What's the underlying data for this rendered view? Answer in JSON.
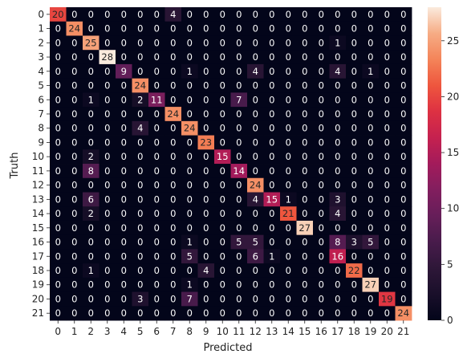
{
  "chart_data": {
    "type": "heatmap",
    "title": "",
    "xlabel": "Predicted",
    "ylabel": "Truth",
    "x_categories": [
      "0",
      "1",
      "2",
      "3",
      "4",
      "5",
      "6",
      "7",
      "8",
      "9",
      "10",
      "11",
      "12",
      "13",
      "14",
      "15",
      "16",
      "17",
      "18",
      "19",
      "20",
      "21"
    ],
    "y_categories": [
      "0",
      "1",
      "2",
      "3",
      "4",
      "5",
      "6",
      "7",
      "8",
      "9",
      "10",
      "11",
      "12",
      "13",
      "14",
      "15",
      "16",
      "17",
      "18",
      "19",
      "20",
      "21"
    ],
    "matrix": [
      [
        20,
        0,
        0,
        0,
        0,
        0,
        0,
        4,
        0,
        0,
        0,
        0,
        0,
        0,
        0,
        0,
        0,
        0,
        0,
        0,
        0,
        0
      ],
      [
        0,
        24,
        0,
        0,
        0,
        0,
        0,
        0,
        0,
        0,
        0,
        0,
        0,
        0,
        0,
        0,
        0,
        0,
        0,
        0,
        0,
        0
      ],
      [
        0,
        0,
        25,
        0,
        0,
        0,
        0,
        0,
        0,
        0,
        0,
        0,
        0,
        0,
        0,
        0,
        0,
        1,
        0,
        0,
        0,
        0
      ],
      [
        0,
        0,
        0,
        28,
        0,
        0,
        0,
        0,
        0,
        0,
        0,
        0,
        0,
        0,
        0,
        0,
        0,
        0,
        0,
        0,
        0,
        0
      ],
      [
        0,
        0,
        0,
        0,
        9,
        0,
        0,
        0,
        1,
        0,
        0,
        0,
        4,
        0,
        0,
        0,
        0,
        4,
        0,
        1,
        0,
        0
      ],
      [
        0,
        0,
        0,
        0,
        0,
        24,
        0,
        0,
        0,
        0,
        0,
        0,
        0,
        0,
        0,
        0,
        0,
        0,
        0,
        0,
        0,
        0
      ],
      [
        0,
        0,
        1,
        0,
        0,
        2,
        11,
        0,
        0,
        0,
        0,
        7,
        0,
        0,
        0,
        0,
        0,
        0,
        0,
        0,
        0,
        0
      ],
      [
        0,
        0,
        0,
        0,
        0,
        0,
        0,
        24,
        0,
        0,
        0,
        0,
        0,
        0,
        0,
        0,
        0,
        0,
        0,
        0,
        0,
        0
      ],
      [
        0,
        0,
        0,
        0,
        0,
        4,
        0,
        0,
        24,
        0,
        0,
        0,
        0,
        0,
        0,
        0,
        0,
        0,
        0,
        0,
        0,
        0
      ],
      [
        0,
        0,
        0,
        0,
        0,
        0,
        0,
        0,
        0,
        23,
        0,
        0,
        0,
        0,
        0,
        0,
        0,
        0,
        0,
        0,
        0,
        0
      ],
      [
        0,
        0,
        2,
        0,
        0,
        0,
        0,
        0,
        0,
        0,
        15,
        0,
        0,
        0,
        0,
        0,
        0,
        0,
        0,
        0,
        0,
        0
      ],
      [
        0,
        0,
        8,
        0,
        0,
        0,
        0,
        0,
        0,
        0,
        0,
        14,
        0,
        0,
        0,
        0,
        0,
        0,
        0,
        0,
        0,
        0
      ],
      [
        0,
        0,
        0,
        0,
        0,
        0,
        0,
        0,
        0,
        0,
        0,
        0,
        24,
        0,
        0,
        0,
        0,
        0,
        0,
        0,
        0,
        0
      ],
      [
        0,
        0,
        6,
        0,
        0,
        0,
        0,
        0,
        0,
        0,
        0,
        0,
        4,
        15,
        1,
        0,
        0,
        3,
        0,
        0,
        0,
        0
      ],
      [
        0,
        0,
        2,
        0,
        0,
        0,
        0,
        0,
        0,
        0,
        0,
        0,
        0,
        0,
        21,
        0,
        0,
        4,
        0,
        0,
        0,
        0
      ],
      [
        0,
        0,
        0,
        0,
        0,
        0,
        0,
        0,
        0,
        0,
        0,
        0,
        0,
        0,
        0,
        27,
        0,
        0,
        0,
        0,
        0,
        0
      ],
      [
        0,
        0,
        0,
        0,
        0,
        0,
        0,
        0,
        1,
        0,
        0,
        5,
        5,
        0,
        0,
        0,
        0,
        8,
        3,
        5,
        0,
        0
      ],
      [
        0,
        0,
        0,
        0,
        0,
        0,
        0,
        0,
        5,
        0,
        0,
        0,
        6,
        1,
        0,
        0,
        0,
        16,
        0,
        0,
        0,
        0
      ],
      [
        0,
        0,
        1,
        0,
        0,
        0,
        0,
        0,
        0,
        4,
        0,
        0,
        0,
        0,
        0,
        0,
        0,
        0,
        22,
        0,
        0,
        0
      ],
      [
        0,
        0,
        0,
        0,
        0,
        0,
        0,
        0,
        1,
        0,
        0,
        0,
        0,
        0,
        0,
        0,
        0,
        0,
        0,
        27,
        0,
        0
      ],
      [
        0,
        0,
        0,
        0,
        0,
        3,
        0,
        0,
        7,
        0,
        0,
        0,
        0,
        0,
        0,
        0,
        0,
        0,
        0,
        0,
        19,
        0
      ],
      [
        0,
        0,
        0,
        0,
        0,
        0,
        0,
        0,
        0,
        0,
        0,
        0,
        0,
        0,
        0,
        0,
        0,
        0,
        0,
        0,
        0,
        24
      ]
    ],
    "vmin": 0,
    "vmax": 28,
    "colormap": "rocket",
    "annotated": true,
    "colorbar": {
      "ticks": [
        0,
        5,
        10,
        15,
        20,
        25
      ],
      "tick_labels": [
        "0",
        "5",
        "10",
        "15",
        "20",
        "25"
      ]
    }
  }
}
